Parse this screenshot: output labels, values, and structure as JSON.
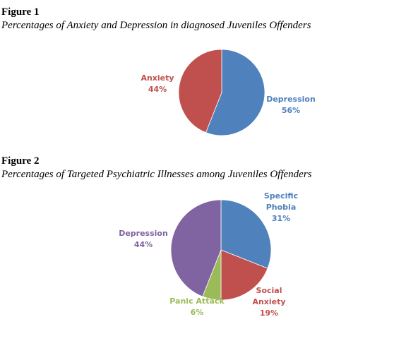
{
  "figures": [
    {
      "label": "Figure 1",
      "caption": "Percentages of Anxiety and Depression in diagnosed Juveniles Offenders"
    },
    {
      "label": "Figure 2",
      "caption": "Percentages of Targeted Psychiatric Illnesses among Juveniles Offenders"
    }
  ],
  "chart_data": [
    {
      "type": "pie",
      "categories": [
        "Depression",
        "Anxiety"
      ],
      "values": [
        56,
        44
      ],
      "value_labels": [
        "56%",
        "44%"
      ],
      "label_lines": [
        [
          "Depression",
          "56%"
        ],
        [
          "Anxiety",
          "44%"
        ]
      ],
      "colors": [
        "#4f81bd",
        "#c0504d"
      ],
      "start": "12 o'clock",
      "direction": "clockwise",
      "legend": "none"
    },
    {
      "type": "pie",
      "categories": [
        "Specific Phobia",
        "Social Anxiety",
        "Panic Attack",
        "Depression"
      ],
      "values": [
        31,
        19,
        6,
        44
      ],
      "value_labels": [
        "31%",
        "19%",
        "6%",
        "44%"
      ],
      "label_lines": [
        [
          "Specific",
          "Phobia",
          "31%"
        ],
        [
          "Social",
          "Anxiety",
          "19%"
        ],
        [
          "Panic Attack",
          "6%"
        ],
        [
          "Depression",
          "44%"
        ]
      ],
      "colors": [
        "#4f81bd",
        "#c0504d",
        "#9bbb59",
        "#8064a2"
      ],
      "start": "12 o'clock",
      "direction": "clockwise",
      "legend": "none"
    }
  ]
}
